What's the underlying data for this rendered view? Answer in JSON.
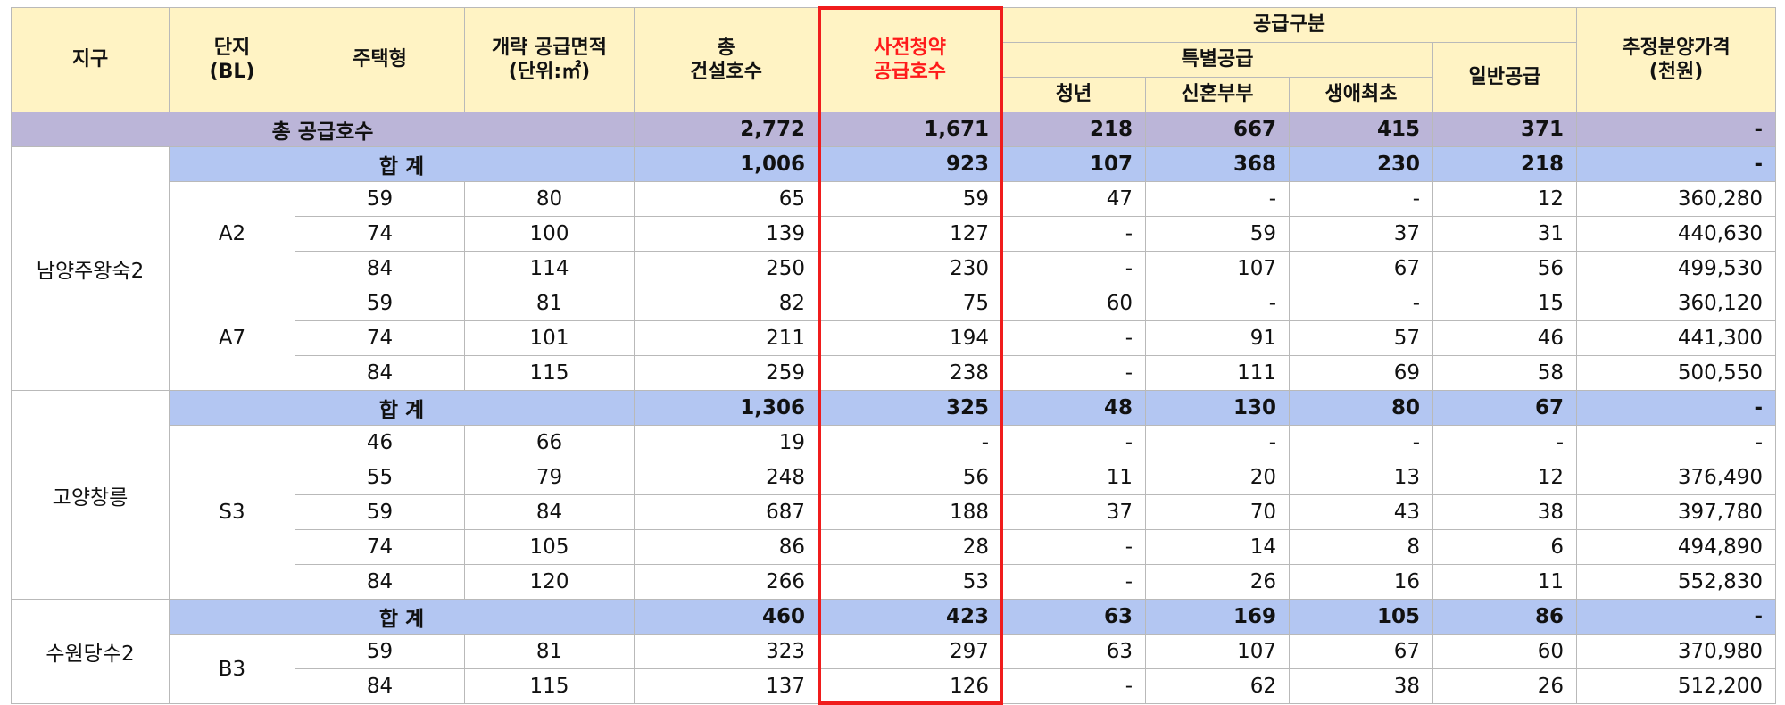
{
  "header": {
    "district": "지구",
    "block_line1": "단지",
    "block_line2": "(BL)",
    "housing_type": "주택형",
    "area_line1": "개략 공급면적",
    "area_line2": "(단위:㎡)",
    "total_line1": "총",
    "total_line2": "건설호수",
    "presub_line1": "사전청약",
    "presub_line2": "공급호수",
    "supply_type": "공급구분",
    "special": "특별공급",
    "youth": "청년",
    "newlywed": "신혼부부",
    "first_time": "생애최초",
    "general": "일반공급",
    "price_line1": "추정분양가격",
    "price_line2": "(천원)"
  },
  "total_row": {
    "label": "총 공급호수",
    "values": [
      "2,772",
      "1,671",
      "218",
      "667",
      "415",
      "371",
      "-"
    ]
  },
  "sum_label": "합 계",
  "districts": [
    {
      "name": "남양주왕숙2",
      "sum": [
        "1,006",
        "923",
        "107",
        "368",
        "230",
        "218",
        "-"
      ],
      "blocks": [
        {
          "name": "A2",
          "rows": [
            [
              "59",
              "80",
              "65",
              "59",
              "47",
              "-",
              "-",
              "12",
              "360,280"
            ],
            [
              "74",
              "100",
              "139",
              "127",
              "-",
              "59",
              "37",
              "31",
              "440,630"
            ],
            [
              "84",
              "114",
              "250",
              "230",
              "-",
              "107",
              "67",
              "56",
              "499,530"
            ]
          ]
        },
        {
          "name": "A7",
          "rows": [
            [
              "59",
              "81",
              "82",
              "75",
              "60",
              "-",
              "-",
              "15",
              "360,120"
            ],
            [
              "74",
              "101",
              "211",
              "194",
              "-",
              "91",
              "57",
              "46",
              "441,300"
            ],
            [
              "84",
              "115",
              "259",
              "238",
              "-",
              "111",
              "69",
              "58",
              "500,550"
            ]
          ]
        }
      ]
    },
    {
      "name": "고양창릉",
      "sum": [
        "1,306",
        "325",
        "48",
        "130",
        "80",
        "67",
        "-"
      ],
      "blocks": [
        {
          "name": "S3",
          "rows": [
            [
              "46",
              "66",
              "19",
              "-",
              "-",
              "-",
              "-",
              "-",
              "-"
            ],
            [
              "55",
              "79",
              "248",
              "56",
              "11",
              "20",
              "13",
              "12",
              "376,490"
            ],
            [
              "59",
              "84",
              "687",
              "188",
              "37",
              "70",
              "43",
              "38",
              "397,780"
            ],
            [
              "74",
              "105",
              "86",
              "28",
              "-",
              "14",
              "8",
              "6",
              "494,890"
            ],
            [
              "84",
              "120",
              "266",
              "53",
              "-",
              "26",
              "16",
              "11",
              "552,830"
            ]
          ]
        }
      ]
    },
    {
      "name": "수원당수2",
      "sum": [
        "460",
        "423",
        "63",
        "169",
        "105",
        "86",
        "-"
      ],
      "blocks": [
        {
          "name": "B3",
          "rows": [
            [
              "59",
              "81",
              "323",
              "297",
              "63",
              "107",
              "67",
              "60",
              "370,980"
            ],
            [
              "84",
              "115",
              "137",
              "126",
              "-",
              "62",
              "38",
              "26",
              "512,200"
            ]
          ]
        }
      ]
    }
  ],
  "colors": {
    "header_bg": "#fff3c4",
    "total_bg": "#bbb5d8",
    "sum_bg": "#b3c6f2",
    "highlight": "#f01c1c"
  }
}
